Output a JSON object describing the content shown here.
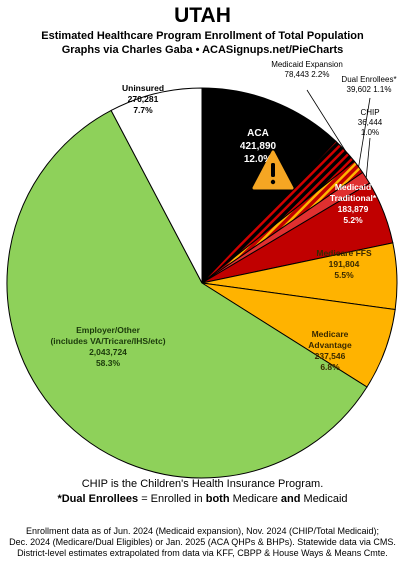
{
  "header": {
    "title": "UTAH",
    "subtitle_1": "Estimated Healthcare Program Enrollment of Total Population",
    "subtitle_2": "Graphs via Charles Gaba  •  ACASignups.net/PieCharts"
  },
  "notes": {
    "chip_note": "CHIP is the Children's Health Insurance Program.",
    "dual_prefix": "*Dual Enrollees",
    "dual_mid": " = Enrolled in ",
    "dual_both": "both",
    "dual_mid2": " Medicare ",
    "dual_and": "and",
    "dual_end": " Medicaid"
  },
  "footer": {
    "line_1": "Enrollment data as of Jun. 2024 (Medicaid expansion), Nov. 2024 (CHIP/Total Medicaid);",
    "line_2": "Dec. 2024 (Medicare/Dual Eligibles) or Jan. 2025 (ACA QHPs & BHPs). Statewide data via CMS.",
    "line_3": "District-level estimates extrapolated from data via KFF, CBPP & House Ways & Means Cmte."
  },
  "chart_data": {
    "type": "pie",
    "title": "UTAH",
    "start": "12 o'clock, clockwise",
    "slices": [
      {
        "name": "ACA",
        "value": 421890,
        "value_label": "421,890",
        "percent_label": "12.0%",
        "color": "#000000",
        "label_color": "#ffffff",
        "pattern": "none",
        "icon": "warning-icon"
      },
      {
        "name": "Medicaid Expansion",
        "value": 78443,
        "value_label": "78,443",
        "percent_label": "2.2%",
        "color": "#000000",
        "label_color": "#000000",
        "pattern": "red-stripes",
        "callout": true
      },
      {
        "name": "Dual Enrollees*",
        "value": 39602,
        "value_label": "39,602",
        "percent_label": "1.1%",
        "color": "#c00000",
        "label_color": "#000000",
        "pattern": "orange-stripes",
        "callout": true
      },
      {
        "name": "CHIP",
        "value": 36444,
        "value_label": "36,444",
        "percent_label": "1.0%",
        "color": "#e03030",
        "label_color": "#000000",
        "pattern": "none",
        "callout": true
      },
      {
        "name": "Medicaid Traditional*",
        "value": 183879,
        "value_label": "183,879",
        "percent_label": "5.2%",
        "color": "#c00000",
        "label_color": "#ffffff",
        "pattern": "none"
      },
      {
        "name": "Medicare FFS",
        "value": 191804,
        "value_label": "191,804",
        "percent_label": "5.5%",
        "color": "#ffb300",
        "label_color": "#3a2a00",
        "pattern": "none"
      },
      {
        "name": "Medicare Advantage",
        "value": 237546,
        "value_label": "237,546",
        "percent_label": "6.8%",
        "color": "#ffb300",
        "label_color": "#3a2a00",
        "pattern": "none"
      },
      {
        "name": "Employer/Other (includes VA/Tricare/IHS/etc)",
        "value": 2043724,
        "value_label": "2,043,724",
        "percent_label": "58.3%",
        "color": "#8ed15a",
        "label_color": "#1b3a0b",
        "pattern": "none"
      },
      {
        "name": "Uninsured",
        "value": 270281,
        "value_label": "270,281",
        "percent_label": "7.7%",
        "color": "#ffffff",
        "label_color": "#000000",
        "pattern": "none"
      }
    ]
  }
}
